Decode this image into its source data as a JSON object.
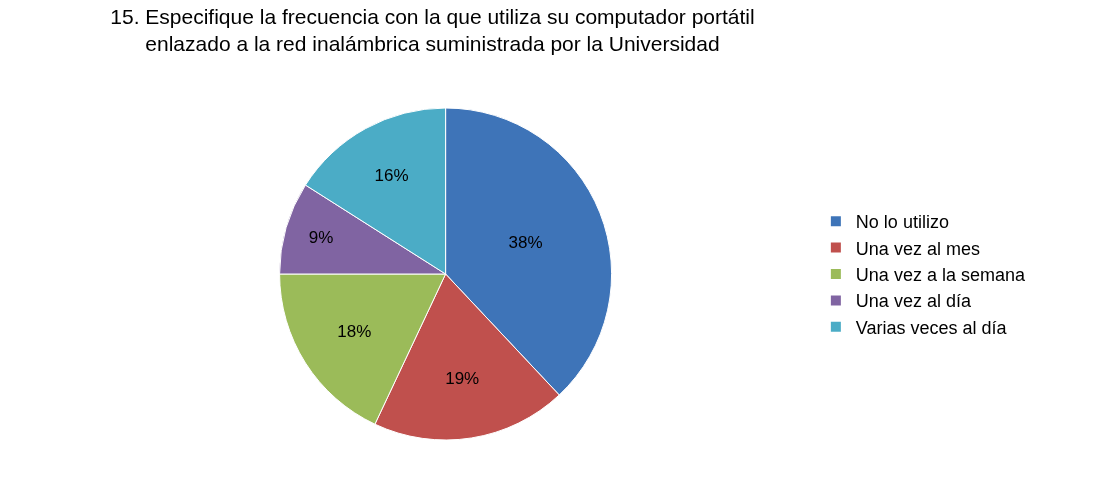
{
  "chart_data": {
    "type": "pie",
    "title": "15. Especifique la frecuencia con la que utiliza su computador portátil\nenlazado a la red inalámbrica suministrada por la Universidad",
    "categories": [
      "No lo utilizo",
      "Una vez al mes",
      "Una vez a la semana",
      "Una vez al día",
      "Varias veces al día"
    ],
    "values": [
      38,
      19,
      18,
      9,
      16
    ],
    "value_labels": [
      "38%",
      "19%",
      "18%",
      "9%",
      "16%"
    ],
    "colors": [
      "#3e74b8",
      "#c0504d",
      "#9bbb59",
      "#8064a2",
      "#4bacc6"
    ],
    "legend": "right"
  }
}
